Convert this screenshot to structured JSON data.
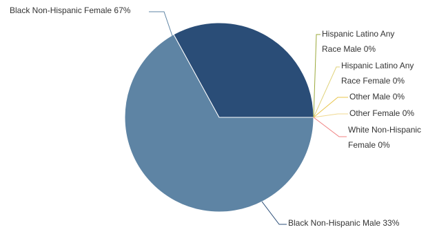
{
  "chart_data": {
    "type": "pie",
    "slices": [
      {
        "name": "Black Non-Hispanic Female",
        "value": 67,
        "color": "#5e84a4",
        "label_lines": [
          "Black Non-Hispanic Female 67%"
        ],
        "connector_color": "#5e84a4"
      },
      {
        "name": "Black Non-Hispanic Male",
        "value": 33,
        "color": "#2a4d77",
        "label_lines": [
          "Black Non-Hispanic Male 33%"
        ],
        "connector_color": "#2a4d77"
      },
      {
        "name": "Hispanic Latino Any Race Male",
        "value": 0,
        "color": "#9aa83a",
        "label_lines": [
          "Hispanic Latino Any",
          "Race Male 0%"
        ],
        "connector_color": "#9aa83a"
      },
      {
        "name": "Hispanic Latino Any Race Female",
        "value": 0,
        "color": "#e0d27a",
        "label_lines": [
          "Hispanic Latino Any",
          "Race Female 0%"
        ],
        "connector_color": "#e0d27a"
      },
      {
        "name": "Other Male",
        "value": 0,
        "color": "#e8c44a",
        "label_lines": [
          "Other Male 0%"
        ],
        "connector_color": "#e8c44a"
      },
      {
        "name": "Other Female",
        "value": 0,
        "color": "#f0d890",
        "label_lines": [
          "Other Female 0%"
        ],
        "connector_color": "#f0d890"
      },
      {
        "name": "White Non-Hispanic Female",
        "value": 0,
        "color": "#f08080",
        "label_lines": [
          "White Non-Hispanic",
          "Female 0%"
        ],
        "connector_color": "#f08080"
      }
    ]
  }
}
